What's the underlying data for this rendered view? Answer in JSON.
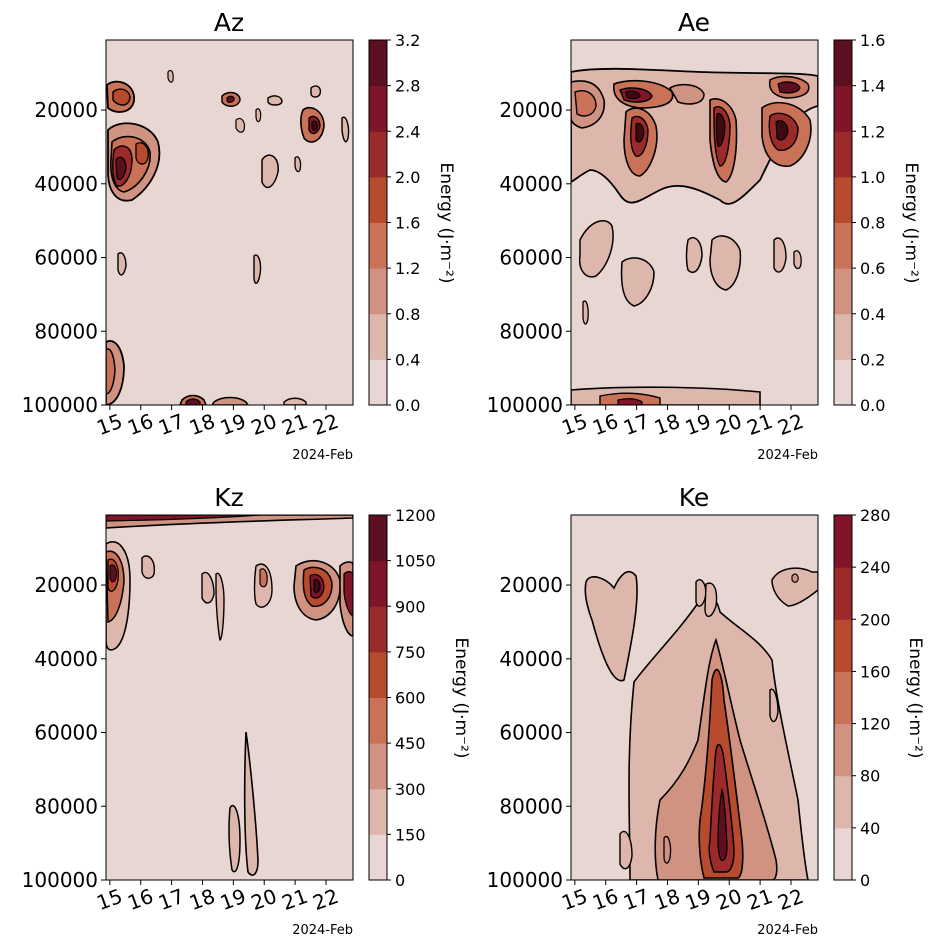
{
  "figure": {
    "colormap": [
      "#e8d6d2",
      "#ddb6ac",
      "#d09281",
      "#c97257",
      "#b84a2e",
      "#9c2a2b",
      "#801428",
      "#5c0f1e",
      "#3d0a0f"
    ],
    "month_label": "2024-Feb",
    "x_ticks": [
      "15",
      "16",
      "17",
      "18",
      "19",
      "20",
      "21",
      "22"
    ],
    "y_ticks": [
      "20000",
      "40000",
      "60000",
      "80000",
      "100000"
    ]
  },
  "chart_data": [
    {
      "type": "contour",
      "title": "Az",
      "colorbar_label": "Energy (J·m⁻²)",
      "levels": [
        "0.0",
        "0.4",
        "0.8",
        "1.2",
        "1.6",
        "2.0",
        "2.4",
        "2.8",
        "3.2"
      ],
      "level_max": 3.2,
      "xlim": [
        "2024-02-14T21:00",
        "2024-02-22T21:00"
      ],
      "ylim": [
        100000,
        1000
      ],
      "hotspots": [
        {
          "x": 15.4,
          "y": 18000,
          "value": 1.6
        },
        {
          "x": 15.4,
          "y": 36000,
          "value": 2.8
        },
        {
          "x": 15.9,
          "y": 32000,
          "value": 1.2
        },
        {
          "x": 19.0,
          "y": 18000,
          "value": 0.8
        },
        {
          "x": 21.7,
          "y": 24000,
          "value": 2.0
        },
        {
          "x": 19.2,
          "y": 99000,
          "value": 0.8
        },
        {
          "x": 15.0,
          "y": 95000,
          "value": 0.8
        }
      ]
    },
    {
      "type": "contour",
      "title": "Ae",
      "colorbar_label": "Energy (J·m⁻²)",
      "levels": [
        "0.0",
        "0.2",
        "0.4",
        "0.6",
        "0.8",
        "1.0",
        "1.2",
        "1.4",
        "1.6"
      ],
      "level_max": 1.6,
      "xlim": [
        "2024-02-14T21:00",
        "2024-02-22T21:00"
      ],
      "ylim": [
        100000,
        1000
      ],
      "hotspots": [
        {
          "x": 15.1,
          "y": 18000,
          "value": 0.8
        },
        {
          "x": 16.9,
          "y": 16000,
          "value": 1.0
        },
        {
          "x": 17.3,
          "y": 24000,
          "value": 0.8
        },
        {
          "x": 19.9,
          "y": 24000,
          "value": 1.4
        },
        {
          "x": 21.4,
          "y": 24000,
          "value": 1.2
        },
        {
          "x": 22.0,
          "y": 16000,
          "value": 0.8
        },
        {
          "x": 17.0,
          "y": 99000,
          "value": 0.6
        }
      ]
    },
    {
      "type": "contour",
      "title": "Kz",
      "colorbar_label": "Energy (J·m⁻²)",
      "levels": [
        "0",
        "150",
        "300",
        "450",
        "600",
        "750",
        "900",
        "1050",
        "1200"
      ],
      "level_max": 1200,
      "xlim": [
        "2024-02-14T21:00",
        "2024-02-22T21:00"
      ],
      "ylim": [
        100000,
        1000
      ],
      "hotspots": [
        {
          "x": 15.2,
          "y": 17000,
          "value": 600
        },
        {
          "x": 21.7,
          "y": 20000,
          "value": 900
        },
        {
          "x": 22.7,
          "y": 20000,
          "value": 750
        },
        {
          "x": 19.3,
          "y": 88000,
          "value": 150
        }
      ]
    },
    {
      "type": "contour",
      "title": "Ke",
      "colorbar_label": "Energy (J·m⁻²)",
      "levels": [
        "0",
        "40",
        "80",
        "120",
        "160",
        "200",
        "240",
        "280"
      ],
      "level_max": 280,
      "xlim": [
        "2024-02-14T21:00",
        "2024-02-22T21:00"
      ],
      "ylim": [
        100000,
        1000
      ],
      "hotspots": [
        {
          "x": 19.8,
          "y": 85000,
          "value": 200
        },
        {
          "x": 19.6,
          "y": 55000,
          "value": 120
        },
        {
          "x": 22.6,
          "y": 20000,
          "value": 80
        }
      ]
    }
  ]
}
